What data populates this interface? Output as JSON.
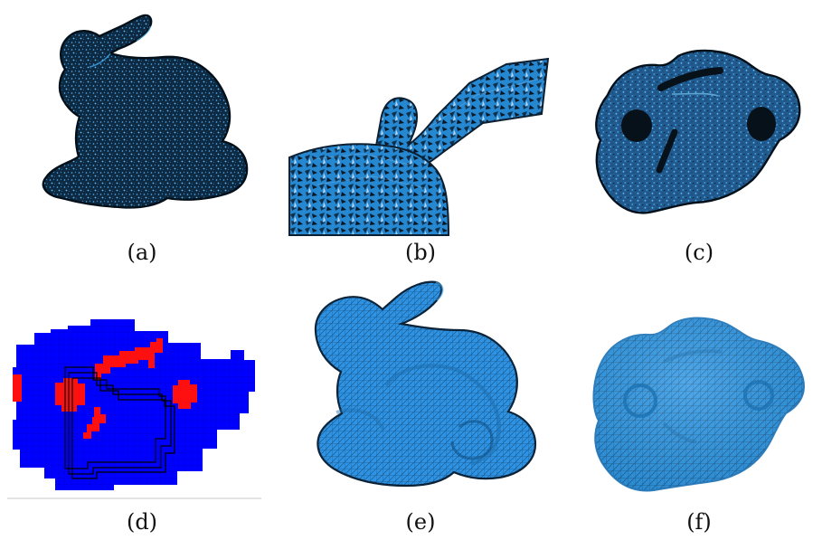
{
  "figure": {
    "panels": [
      {
        "id": "a",
        "caption": "(a)"
      },
      {
        "id": "b",
        "caption": "(b)"
      },
      {
        "id": "c",
        "caption": "(c)"
      },
      {
        "id": "d",
        "caption": "(d)"
      },
      {
        "id": "e",
        "caption": "(e)"
      },
      {
        "id": "f",
        "caption": "(f)"
      }
    ],
    "colors": {
      "mesh_blue": "#2f93e6",
      "mesh_dark": "#0f2c45",
      "voxel_blue": "#0000ff",
      "voxel_red": "#ff1010",
      "background": "#ffffff"
    }
  }
}
